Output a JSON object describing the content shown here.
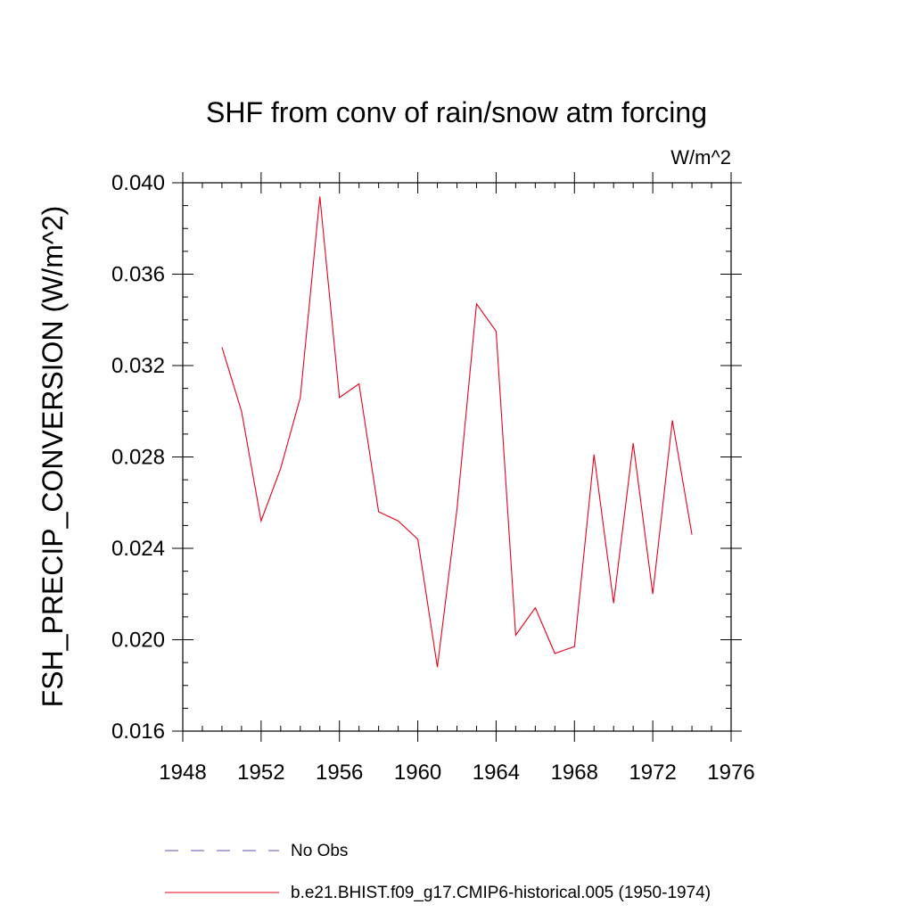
{
  "chart_data": {
    "type": "line",
    "title": "SHF from conv of rain/snow atm forcing",
    "units": "W/m^2",
    "xlabel": "",
    "ylabel": "FSH_PRECIP_CONVERSION  (W/m^2)",
    "xlim": [
      1948,
      1976
    ],
    "ylim": [
      0.016,
      0.04
    ],
    "x_ticks": [
      "1948",
      "1952",
      "1956",
      "1960",
      "1964",
      "1968",
      "1972",
      "1976"
    ],
    "y_ticks": [
      "0.016",
      "0.020",
      "0.024",
      "0.028",
      "0.032",
      "0.036",
      "0.040"
    ],
    "grid": false,
    "legend_placement": "bottom",
    "series": [
      {
        "name": "b.e21.BHIST.f09_g17.CMIP6-historical.005 (1950-1974)",
        "color": "#e8001c",
        "style": "solid",
        "x": [
          1950,
          1951,
          1952,
          1953,
          1954,
          1955,
          1956,
          1957,
          1958,
          1959,
          1960,
          1961,
          1962,
          1963,
          1964,
          1965,
          1966,
          1967,
          1968,
          1969,
          1970,
          1971,
          1972,
          1973,
          1974
        ],
        "y": [
          0.0328,
          0.03,
          0.0252,
          0.0275,
          0.0306,
          0.0394,
          0.0306,
          0.0312,
          0.0256,
          0.0252,
          0.0244,
          0.0188,
          0.0257,
          0.0347,
          0.0335,
          0.0202,
          0.0214,
          0.0194,
          0.0197,
          0.0281,
          0.0216,
          0.0286,
          0.022,
          0.0296,
          0.0246
        ]
      }
    ],
    "legend": [
      {
        "label": "No Obs",
        "color": "#5a50b4",
        "style": "dashed"
      },
      {
        "label": "b.e21.BHIST.f09_g17.CMIP6-historical.005 (1950-1974)",
        "color": "#e8001c",
        "style": "solid"
      }
    ]
  }
}
